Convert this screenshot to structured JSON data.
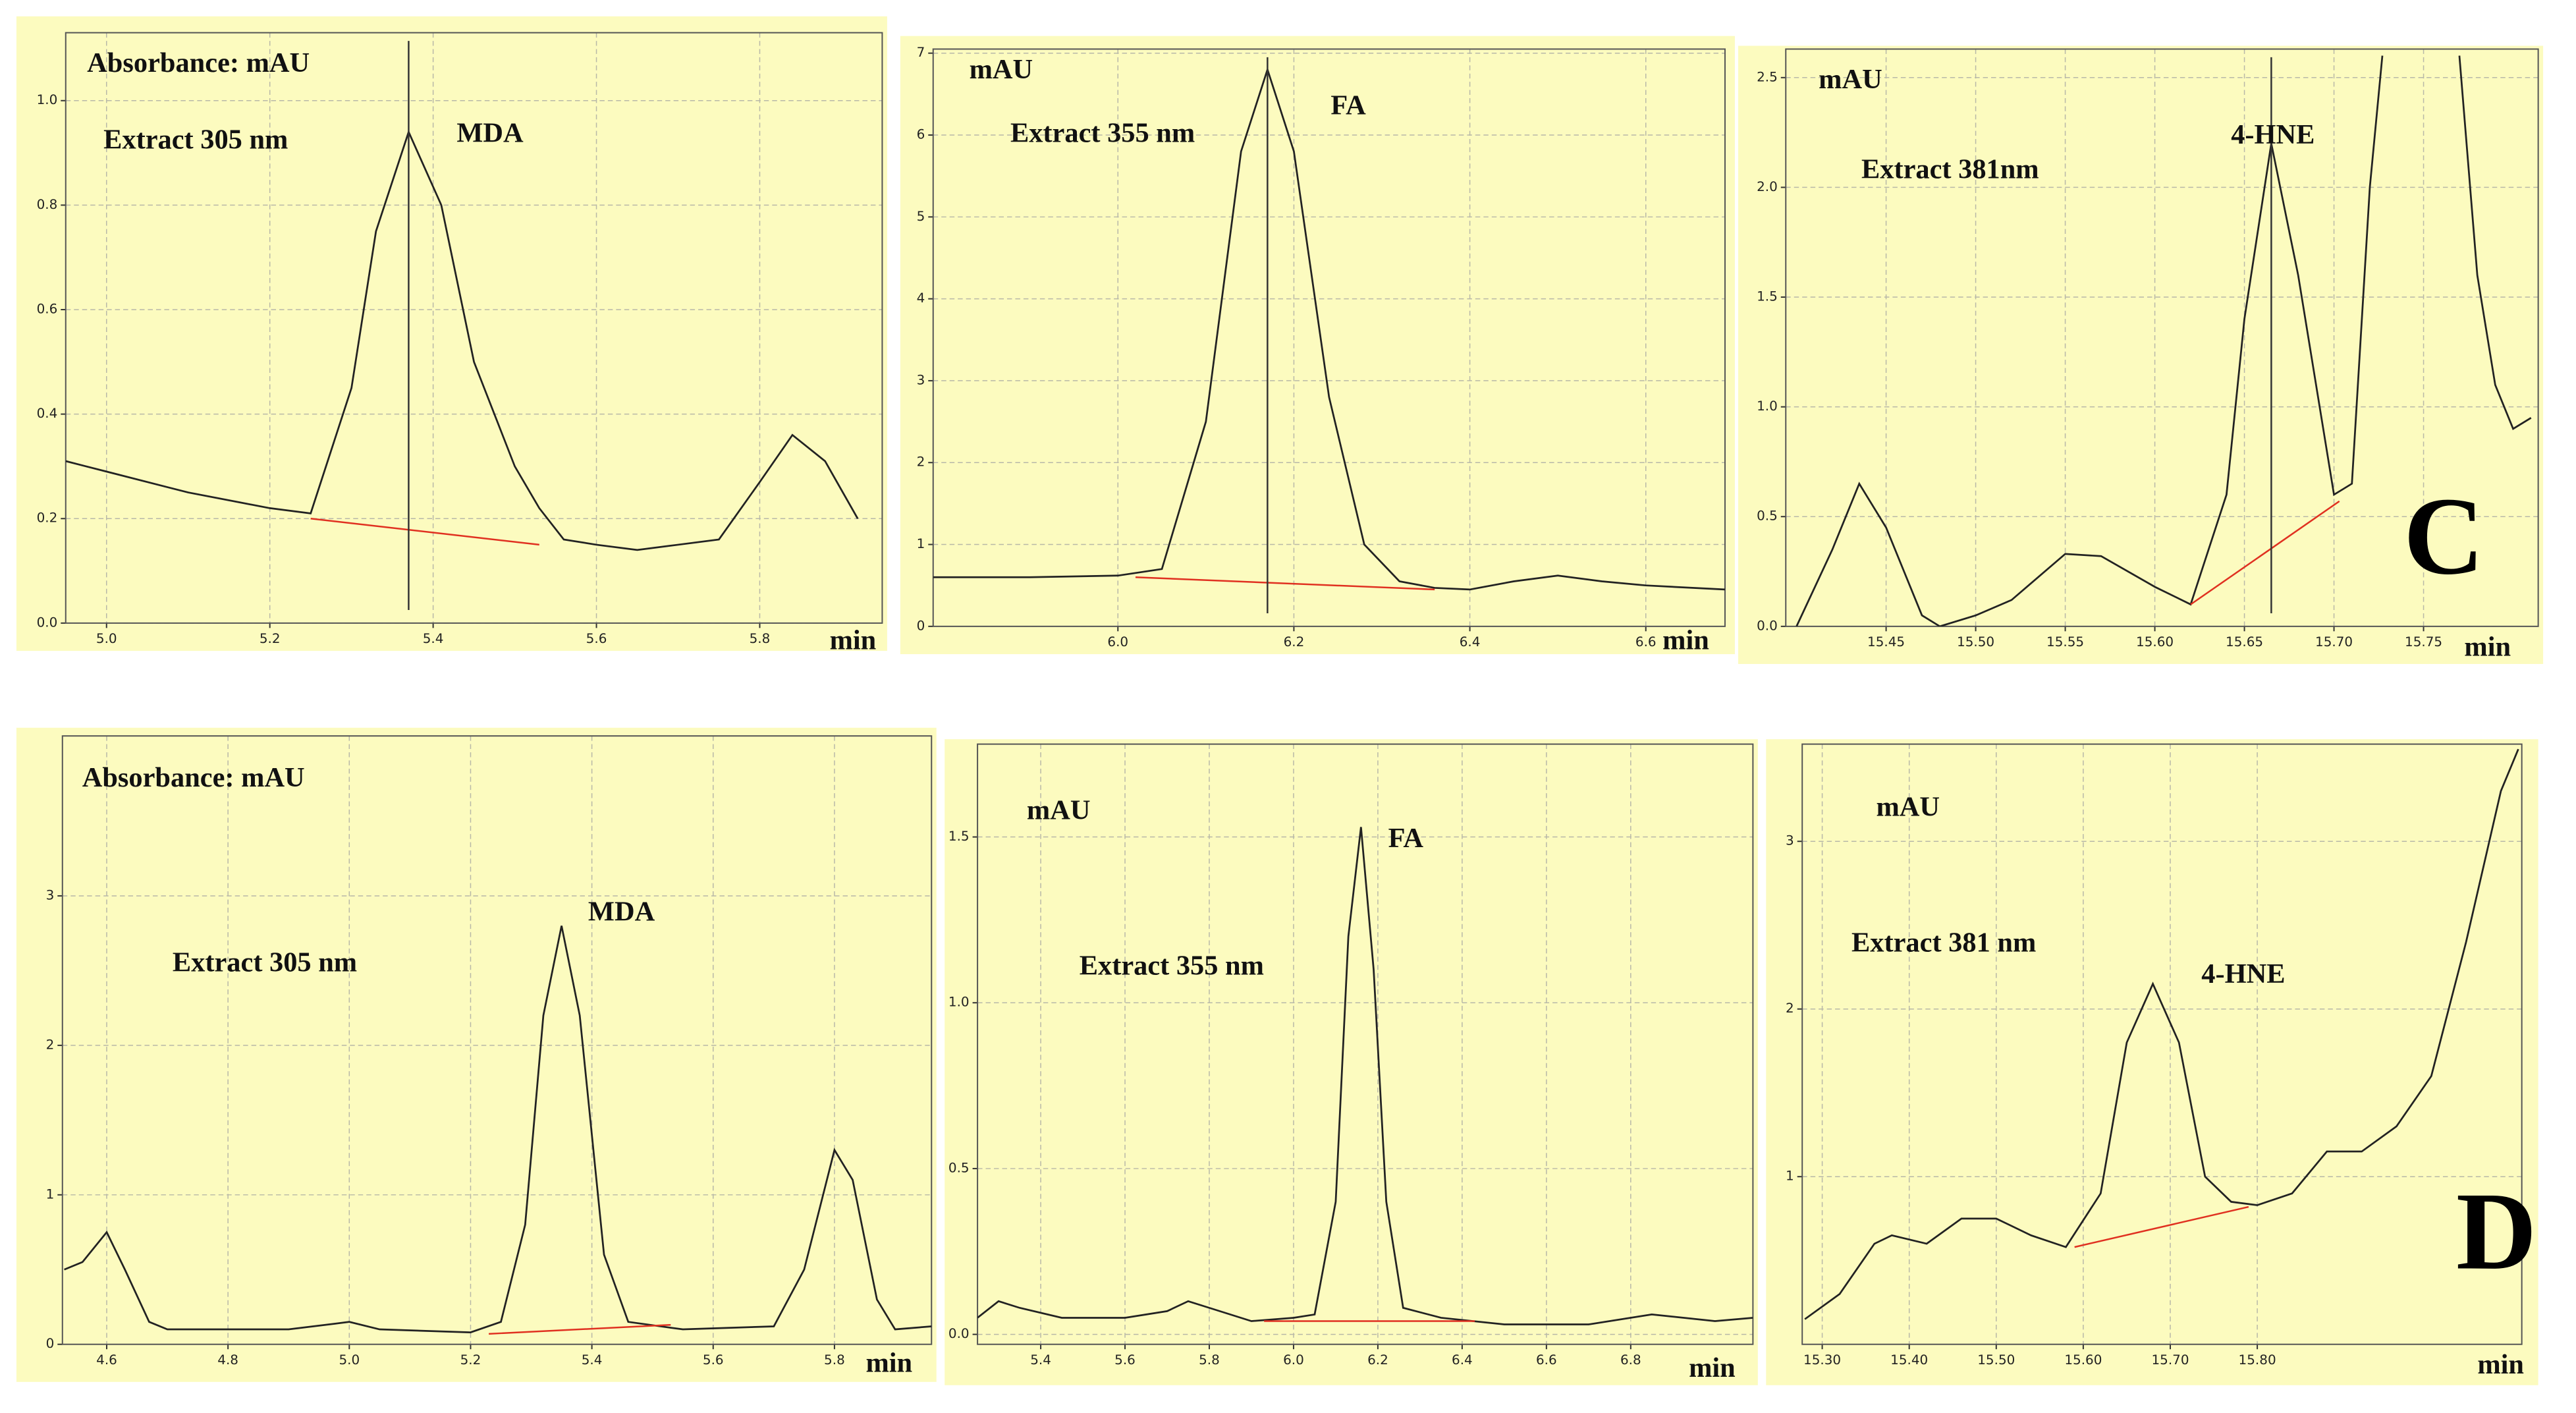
{
  "chart_data": [
    {
      "type": "line",
      "ylabel": "Absorbance: mAU",
      "extract": "Extract 305 nm",
      "peak": "MDA",
      "xlabel": "min",
      "color": "#222222",
      "grid": true,
      "xlim": [
        4.95,
        5.95
      ],
      "ylim": [
        0,
        1.13
      ],
      "xticks": [
        {
          "value": 5.0,
          "label": "5.0"
        },
        5.2,
        5.4,
        5.6,
        5.8
      ],
      "yticks": [
        {
          "value": 0,
          "label": "0.0"
        },
        0.2,
        0.4,
        0.6,
        0.8,
        {
          "value": 1,
          "label": "1.0"
        }
      ],
      "x": [
        4.95,
        5.0,
        5.1,
        5.2,
        5.25,
        5.3,
        5.33,
        5.37,
        5.41,
        5.45,
        5.5,
        5.53,
        5.56,
        5.6,
        5.65,
        5.7,
        5.75,
        5.8,
        5.84,
        5.88,
        5.92
      ],
      "values": [
        0.31,
        0.29,
        0.25,
        0.22,
        0.21,
        0.45,
        0.75,
        0.94,
        0.8,
        0.5,
        0.3,
        0.22,
        0.16,
        0.15,
        0.14,
        0.15,
        0.16,
        0.27,
        0.36,
        0.31,
        0.2
      ],
      "baseline": {
        "color": "#e03020",
        "x": [
          5.25,
          5.53
        ],
        "values": [
          0.2,
          0.15
        ]
      },
      "marker_x": 5.37
    },
    {
      "type": "line",
      "ylabel": "mAU",
      "extract": "Extract 355 nm",
      "peak": "FA",
      "xlabel": "min",
      "color": "#222222",
      "grid": true,
      "xlim": [
        5.79,
        6.69
      ],
      "ylim": [
        0,
        7.05
      ],
      "xticks": [
        {
          "value": 6.0,
          "label": "6.0"
        },
        6.2,
        6.4,
        6.6
      ],
      "yticks": [
        0,
        1,
        2,
        3,
        4,
        5,
        6,
        7
      ],
      "x": [
        5.79,
        5.9,
        6.0,
        6.05,
        6.1,
        6.14,
        6.17,
        6.2,
        6.24,
        6.28,
        6.32,
        6.36,
        6.4,
        6.45,
        6.5,
        6.55,
        6.6,
        6.69
      ],
      "values": [
        0.6,
        0.6,
        0.62,
        0.7,
        2.5,
        5.8,
        6.8,
        5.8,
        2.8,
        1,
        0.55,
        0.47,
        0.45,
        0.55,
        0.62,
        0.55,
        0.5,
        0.45
      ],
      "baseline": {
        "color": "#e03020",
        "x": [
          6.02,
          6.36
        ],
        "values": [
          0.6,
          0.45
        ]
      },
      "marker_x": 6.17
    },
    {
      "type": "line",
      "ylabel": "mAU",
      "extract": "Extract 381nm",
      "peak": "4-HNE",
      "xlabel": "min",
      "panel_label": "C",
      "color": "#222222",
      "grid": true,
      "xlim": [
        15.394,
        15.814
      ],
      "ylim": [
        0,
        2.63
      ],
      "xticks": [
        15.45,
        {
          "value": 15.5,
          "label": "15.50"
        },
        15.55,
        {
          "value": 15.6,
          "label": "15.60"
        },
        15.65,
        {
          "value": 15.7,
          "label": "15.70"
        },
        15.75
      ],
      "yticks": [
        {
          "value": 0,
          "label": "0.0"
        },
        0.5,
        {
          "value": 1,
          "label": "1.0"
        },
        1.5,
        {
          "value": 2,
          "label": "2.0"
        },
        2.5
      ],
      "x": [
        15.4,
        15.42,
        15.435,
        15.45,
        15.47,
        15.48,
        15.5,
        15.52,
        15.55,
        15.57,
        15.6,
        15.62,
        15.64,
        15.65,
        15.665,
        15.68,
        15.7,
        15.71,
        15.72,
        15.727,
        15.75,
        15.77,
        15.78,
        15.79,
        15.8,
        15.81
      ],
      "values": [
        0.0,
        0.35,
        0.65,
        0.45,
        0.05,
        0.0,
        0.05,
        0.12,
        0.33,
        0.32,
        0.18,
        0.1,
        0.6,
        1.4,
        2.2,
        1.6,
        0.6,
        0.65,
        2.0,
        2.6,
        null,
        2.6,
        1.6,
        1.1,
        0.9,
        0.95
      ],
      "baseline": {
        "color": "#e03020",
        "x": [
          15.62,
          15.703
        ],
        "values": [
          0.1,
          0.57
        ]
      },
      "marker_x": 15.665
    },
    {
      "type": "line",
      "ylabel": "Absorbance: mAU",
      "extract": "Extract 305 nm",
      "peak": "MDA",
      "xlabel": "min",
      "color": "#222222",
      "grid": true,
      "xlim": [
        4.527,
        5.96
      ],
      "ylim": [
        0,
        4.07
      ],
      "xticks": [
        4.6,
        4.8,
        {
          "value": 5.0,
          "label": "5.0"
        },
        5.2,
        5.4,
        5.6,
        5.8
      ],
      "yticks": [
        0,
        1,
        2,
        3
      ],
      "x": [
        4.53,
        4.56,
        4.6,
        4.63,
        4.67,
        4.7,
        4.8,
        4.9,
        5.0,
        5.05,
        5.2,
        5.25,
        5.29,
        5.32,
        5.35,
        5.38,
        5.42,
        5.46,
        5.55,
        5.7,
        5.75,
        5.8,
        5.83,
        5.87,
        5.9,
        5.96
      ],
      "values": [
        0.5,
        0.55,
        0.75,
        0.5,
        0.15,
        0.1,
        0.1,
        0.1,
        0.15,
        0.1,
        0.08,
        0.15,
        0.8,
        2.2,
        2.8,
        2.2,
        0.6,
        0.15,
        0.1,
        0.12,
        0.5,
        1.3,
        1.1,
        0.3,
        0.1,
        0.12
      ],
      "baseline": {
        "color": "#e03020",
        "x": [
          5.23,
          5.53
        ],
        "values": [
          0.07,
          0.13
        ]
      }
    },
    {
      "type": "line",
      "ylabel": "mAU",
      "extract": "Extract 355 nm",
      "peak": "FA",
      "xlabel": "min",
      "color": "#222222",
      "grid": true,
      "xlim": [
        5.25,
        7.09
      ],
      "ylim": [
        -0.03,
        1.78
      ],
      "xticks": [
        5.4,
        5.6,
        5.8,
        {
          "value": 6.0,
          "label": "6.0"
        },
        6.2,
        6.4,
        6.6,
        6.8
      ],
      "yticks": [
        {
          "value": 0,
          "label": "0.0"
        },
        0.5,
        {
          "value": 1,
          "label": "1.0"
        },
        1.5
      ],
      "x": [
        5.25,
        5.3,
        5.35,
        5.45,
        5.6,
        5.7,
        5.75,
        5.8,
        5.9,
        6.0,
        6.05,
        6.1,
        6.13,
        6.16,
        6.19,
        6.22,
        6.26,
        6.35,
        6.5,
        6.7,
        6.85,
        7.0,
        7.09
      ],
      "values": [
        0.05,
        0.1,
        0.08,
        0.05,
        0.05,
        0.07,
        0.1,
        0.08,
        0.04,
        0.05,
        0.06,
        0.4,
        1.2,
        1.53,
        1.1,
        0.4,
        0.08,
        0.05,
        0.03,
        0.03,
        0.06,
        0.04,
        0.05
      ],
      "baseline": {
        "color": "#e03020",
        "x": [
          5.93,
          6.43
        ],
        "values": [
          0.04,
          0.04
        ]
      }
    },
    {
      "type": "line",
      "ylabel": "mAU",
      "extract": "Extract 381 nm",
      "peak": "4-HNE",
      "xlabel": "min",
      "panel_label": "D",
      "color": "#222222",
      "grid": true,
      "xlim": [
        15.277,
        16.104
      ],
      "ylim": [
        0,
        3.58
      ],
      "xticks": [
        {
          "value": 15.3,
          "label": "15.30"
        },
        {
          "value": 15.4,
          "label": "15.40"
        },
        {
          "value": 15.5,
          "label": "15.50"
        },
        {
          "value": 15.6,
          "label": "15.60"
        },
        {
          "value": 15.7,
          "label": "15.70"
        },
        {
          "value": 15.8,
          "label": "15.80"
        }
      ],
      "yticks": [
        1,
        2,
        3
      ],
      "x": [
        15.28,
        15.32,
        15.36,
        15.38,
        15.42,
        15.46,
        15.5,
        15.54,
        15.58,
        15.62,
        15.65,
        15.68,
        15.71,
        15.74,
        15.77,
        15.8,
        15.84,
        15.88,
        15.92,
        15.96,
        16.0,
        16.04,
        16.08,
        16.1
      ],
      "values": [
        0.15,
        0.3,
        0.6,
        0.65,
        0.6,
        0.75,
        0.75,
        0.65,
        0.58,
        0.9,
        1.8,
        2.15,
        1.8,
        1.0,
        0.85,
        0.83,
        0.9,
        1.15,
        1.15,
        1.3,
        1.6,
        2.4,
        3.3,
        3.55
      ],
      "baseline": {
        "color": "#e03020",
        "x": [
          15.59,
          15.79
        ],
        "values": [
          0.58,
          0.82
        ]
      }
    }
  ]
}
